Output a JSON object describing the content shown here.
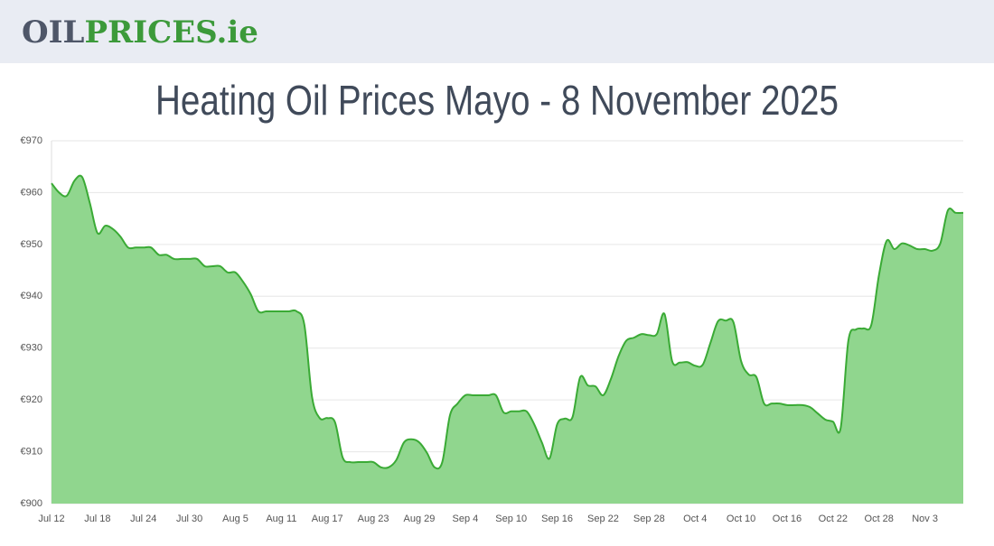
{
  "header": {
    "logo_parts": [
      "OIL",
      "PRICES.ie"
    ]
  },
  "chart_data": {
    "type": "area",
    "title": "Heating Oil Prices Mayo - 8 November 2025",
    "categories": [
      "Jul 12",
      null,
      null,
      null,
      null,
      null,
      "Jul 18",
      null,
      null,
      null,
      null,
      null,
      "Jul 24",
      null,
      null,
      null,
      null,
      null,
      "Jul 30",
      null,
      null,
      null,
      null,
      null,
      "Aug 5",
      null,
      null,
      null,
      null,
      null,
      "Aug 11",
      null,
      null,
      null,
      null,
      null,
      "Aug 17",
      null,
      null,
      null,
      null,
      null,
      "Aug 23",
      null,
      null,
      null,
      null,
      null,
      "Aug 29",
      null,
      null,
      null,
      null,
      null,
      "Sep 4",
      null,
      null,
      null,
      null,
      null,
      "Sep 10",
      null,
      null,
      null,
      null,
      null,
      "Sep 16",
      null,
      null,
      null,
      null,
      null,
      "Sep 22",
      null,
      null,
      null,
      null,
      null,
      "Sep 28",
      null,
      null,
      null,
      null,
      null,
      "Oct 4",
      null,
      null,
      null,
      null,
      null,
      "Oct 10",
      null,
      null,
      null,
      null,
      null,
      "Oct 16",
      null,
      null,
      null,
      null,
      null,
      "Oct 22",
      null,
      null,
      null,
      null,
      null,
      "Oct 28",
      null,
      null,
      null,
      null,
      null,
      "Nov 3",
      null,
      null,
      null,
      null,
      null
    ],
    "values": [
      961.8,
      960,
      959.4,
      962.3,
      963,
      958,
      952.2,
      953.6,
      953,
      951.5,
      949.4,
      949.4,
      949.4,
      949.4,
      948,
      948,
      947.2,
      947.2,
      947.2,
      947.2,
      945.8,
      945.8,
      945.8,
      944.6,
      944.6,
      942.8,
      940.4,
      937.1,
      937.1,
      937.1,
      937.1,
      937.1,
      937.1,
      934.5,
      920.6,
      916.5,
      916.5,
      915.7,
      908.9,
      908,
      908,
      908,
      908,
      907,
      907,
      908.4,
      911.8,
      912.4,
      911.8,
      909.8,
      907,
      908,
      917,
      919.3,
      920.9,
      920.9,
      920.9,
      920.9,
      920.9,
      917.6,
      917.8,
      917.8,
      917.8,
      915.3,
      911.8,
      908.7,
      915.3,
      916.4,
      916.7,
      924.4,
      922.8,
      922.6,
      920.9,
      924,
      928.4,
      931.4,
      932,
      932.7,
      932.5,
      932.7,
      936.6,
      927.5,
      927.2,
      927.3,
      926.6,
      926.8,
      931,
      935.2,
      935.3,
      935,
      927.5,
      924.9,
      924.4,
      919.3,
      919.3,
      919.3,
      919,
      919,
      919,
      918.6,
      917.4,
      916.2,
      915.8,
      914.6,
      931.4,
      933.6,
      933.8,
      934.5,
      944.1,
      950.7,
      949.1,
      950.2,
      949.8,
      949.1,
      949.1,
      948.8,
      950.2,
      956.6,
      956.1,
      956.1
    ],
    "color": "#3aaa35",
    "fill": "#90d68e",
    "ylim": [
      900,
      970
    ],
    "yticks": [
      {
        "value": 900,
        "label": "€900"
      },
      {
        "value": 910,
        "label": "€910"
      },
      {
        "value": 920,
        "label": "€920"
      },
      {
        "value": 930,
        "label": "€930"
      },
      {
        "value": 940,
        "label": "€940"
      },
      {
        "value": 950,
        "label": "€950"
      },
      {
        "value": 960,
        "label": "€960"
      },
      {
        "value": 970,
        "label": "€970"
      }
    ],
    "grid": true
  }
}
